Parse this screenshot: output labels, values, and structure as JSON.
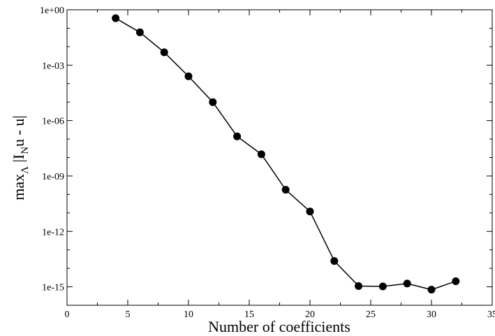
{
  "chart_data": {
    "type": "line",
    "xlabel": "Number of coefficients",
    "ylabel": {
      "main": "max",
      "sub": "Λ",
      "mid": " |I",
      "sub2": "N",
      "tail": "u - u|"
    },
    "xlim": [
      0,
      35
    ],
    "ylim": [
      1e-16,
      1
    ],
    "yscale": "log",
    "grid": false,
    "x_ticks": [
      0,
      5,
      10,
      15,
      20,
      25,
      30,
      35
    ],
    "x_tick_labels": [
      "0",
      "5",
      "10",
      "15",
      "20",
      "25",
      "30",
      "35"
    ],
    "y_ticks": [
      1,
      0.001,
      1e-06,
      1e-09,
      1e-12,
      1e-15
    ],
    "y_tick_labels": [
      "1e+00",
      "1e-03",
      "1e-06",
      "1e-09",
      "1e-12",
      "1e-15"
    ],
    "series": [
      {
        "color": "#000000",
        "marker": "circle",
        "x": [
          4,
          6,
          8,
          10,
          12,
          14,
          16,
          18,
          20,
          22,
          24,
          26,
          28,
          30,
          32
        ],
        "y": [
          0.35,
          0.06,
          0.005,
          0.00025,
          1e-05,
          1.4e-07,
          1.5e-08,
          1.8e-10,
          1.2e-11,
          2.5e-14,
          1.1e-15,
          1.05e-15,
          1.5e-15,
          7e-16,
          2e-15
        ]
      }
    ]
  }
}
